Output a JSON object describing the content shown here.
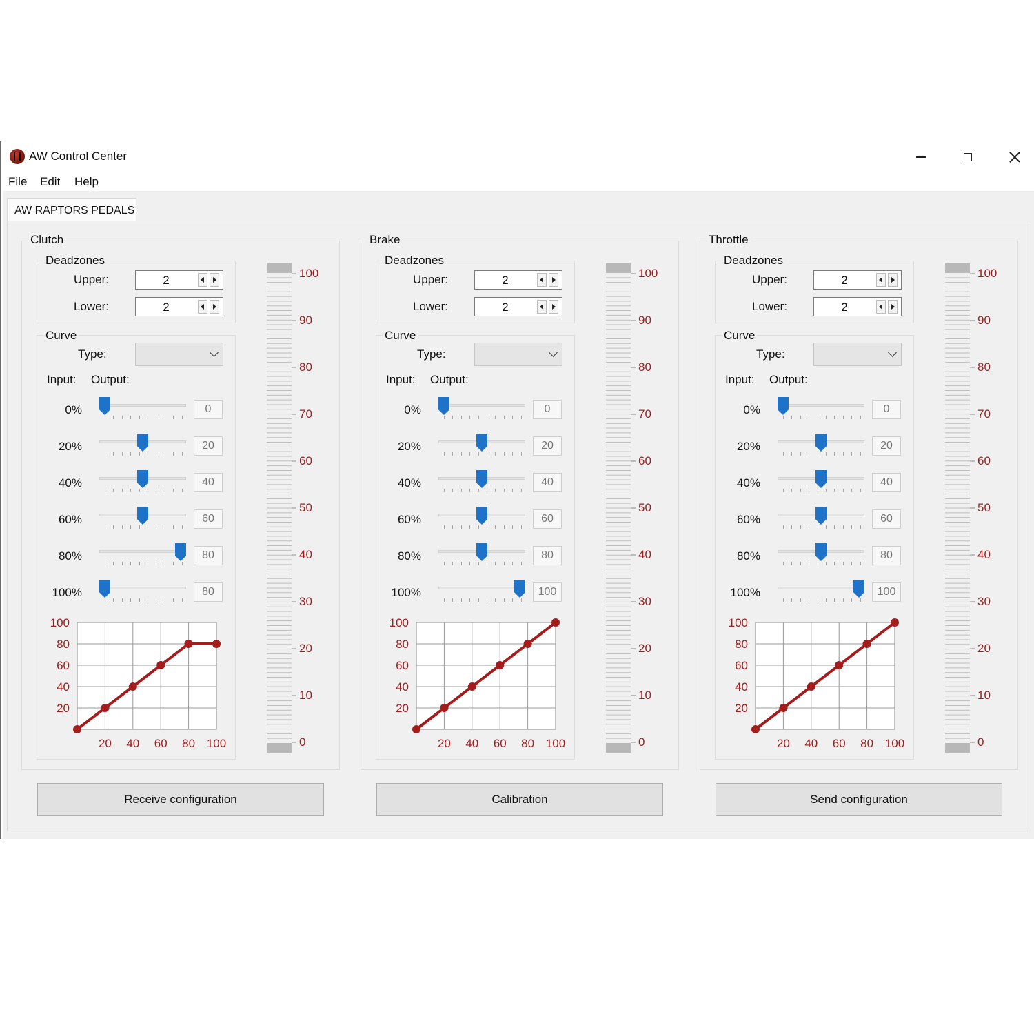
{
  "window": {
    "title": "AW Control Center"
  },
  "menu": [
    "File",
    "Edit",
    "Help"
  ],
  "tab": {
    "label": "AW RAPTORS PEDALS"
  },
  "labels": {
    "deadzones": "Deadzones",
    "upper": "Upper:",
    "lower": "Lower:",
    "curve": "Curve",
    "type": "Type:",
    "input": "Input:",
    "output": "Output:"
  },
  "colors": {
    "curve": "#a51c1c",
    "slider_thumb": "#1e72c8",
    "axis_label": "#a51c1c"
  },
  "input_points": [
    "0%",
    "20%",
    "40%",
    "60%",
    "80%",
    "100%"
  ],
  "level_scale": [
    "100",
    "90",
    "80",
    "70",
    "60",
    "50",
    "40",
    "30",
    "20",
    "10",
    "0"
  ],
  "pedals": [
    {
      "name": "Clutch",
      "deadzones": {
        "upper": "2",
        "lower": "2"
      },
      "curve_type": "",
      "outputs": [
        "0",
        "20",
        "40",
        "60",
        "80",
        "80"
      ],
      "slider_levels": [
        0,
        0.5,
        0.5,
        0.5,
        1,
        0
      ],
      "level_fraction": 0
    },
    {
      "name": "Brake",
      "deadzones": {
        "upper": "2",
        "lower": "2"
      },
      "curve_type": "",
      "outputs": [
        "0",
        "20",
        "40",
        "60",
        "80",
        "100"
      ],
      "slider_levels": [
        0,
        0.5,
        0.5,
        0.5,
        0.5,
        1
      ],
      "level_fraction": 0
    },
    {
      "name": "Throttle",
      "deadzones": {
        "upper": "2",
        "lower": "2"
      },
      "curve_type": "",
      "outputs": [
        "0",
        "20",
        "40",
        "60",
        "80",
        "100"
      ],
      "slider_levels": [
        0,
        0.5,
        0.5,
        0.5,
        0.5,
        1
      ],
      "level_fraction": 0
    }
  ],
  "chart_data": [
    {
      "type": "line",
      "title": "",
      "x": [
        0,
        20,
        40,
        60,
        80,
        100
      ],
      "y": [
        0,
        20,
        40,
        60,
        80,
        80
      ],
      "xlim": [
        0,
        100
      ],
      "ylim": [
        0,
        100
      ],
      "xticks": [
        "20",
        "40",
        "60",
        "80",
        "100"
      ],
      "yticks": [
        "100",
        "80",
        "60",
        "40",
        "20"
      ],
      "grid": true
    },
    {
      "type": "line",
      "title": "",
      "x": [
        0,
        20,
        40,
        60,
        80,
        100
      ],
      "y": [
        0,
        20,
        40,
        60,
        80,
        100
      ],
      "xlim": [
        0,
        100
      ],
      "ylim": [
        0,
        100
      ],
      "xticks": [
        "20",
        "40",
        "60",
        "80",
        "100"
      ],
      "yticks": [
        "100",
        "80",
        "60",
        "40",
        "20"
      ],
      "grid": true
    },
    {
      "type": "line",
      "title": "",
      "x": [
        0,
        20,
        40,
        60,
        80,
        100
      ],
      "y": [
        0,
        20,
        40,
        60,
        80,
        100
      ],
      "xlim": [
        0,
        100
      ],
      "ylim": [
        0,
        100
      ],
      "xticks": [
        "20",
        "40",
        "60",
        "80",
        "100"
      ],
      "yticks": [
        "100",
        "80",
        "60",
        "40",
        "20"
      ],
      "grid": true
    }
  ],
  "buttons": {
    "receive": "Receive configuration",
    "calibration": "Calibration",
    "send": "Send configuration"
  }
}
